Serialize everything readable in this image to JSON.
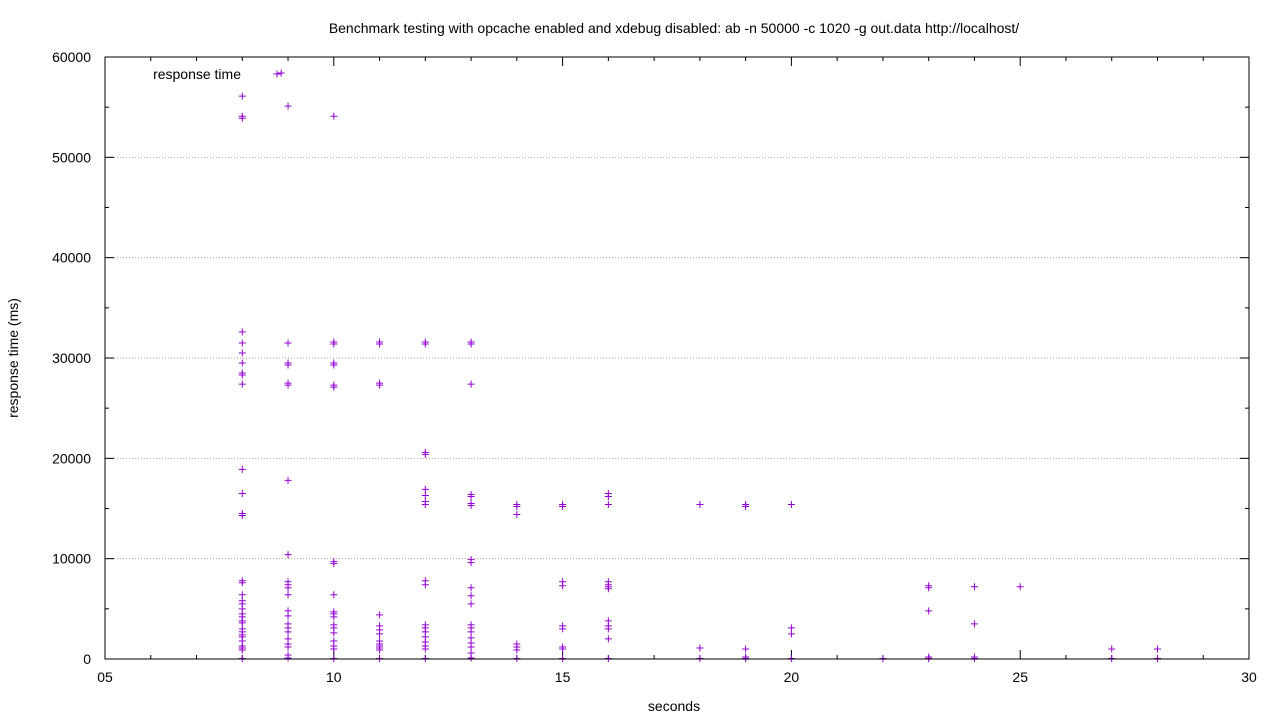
{
  "chart_data": {
    "type": "scatter",
    "title": "Benchmark testing with opcache enabled and xdebug disabled: ab -n 50000 -c 1020 -g out.data http://localhost/",
    "xlabel": "seconds",
    "ylabel": "response time (ms)",
    "xlim": [
      5,
      30
    ],
    "ylim": [
      0,
      60000
    ],
    "x_ticks": [
      5,
      10,
      15,
      20,
      25,
      30
    ],
    "x_tick_labels": [
      "05",
      "10",
      "15",
      "20",
      "25",
      "30"
    ],
    "y_ticks": [
      0,
      10000,
      20000,
      30000,
      40000,
      50000,
      60000
    ],
    "y_tick_labels": [
      "0",
      "10000",
      "20000",
      "30000",
      "40000",
      "50000",
      "60000"
    ],
    "grid": "horizontal dotted",
    "legend_position": "top-left",
    "series": [
      {
        "name": "response time",
        "color": "#9400d3",
        "marker": "plus",
        "points": [
          [
            8,
            56100
          ],
          [
            8,
            54100
          ],
          [
            8,
            53900
          ],
          [
            8,
            32600
          ],
          [
            8,
            31500
          ],
          [
            8,
            30500
          ],
          [
            8,
            29500
          ],
          [
            8,
            28500
          ],
          [
            8,
            28300
          ],
          [
            8,
            27400
          ],
          [
            8,
            18900
          ],
          [
            8,
            16500
          ],
          [
            8,
            14500
          ],
          [
            8,
            14300
          ],
          [
            8,
            7800
          ],
          [
            8,
            7600
          ],
          [
            8,
            6400
          ],
          [
            8,
            5800
          ],
          [
            8,
            5500
          ],
          [
            8,
            5000
          ],
          [
            8,
            4500
          ],
          [
            8,
            4200
          ],
          [
            8,
            3800
          ],
          [
            8,
            3600
          ],
          [
            8,
            3000
          ],
          [
            8,
            2700
          ],
          [
            8,
            2400
          ],
          [
            8,
            2200
          ],
          [
            8,
            1800
          ],
          [
            8,
            1300
          ],
          [
            8,
            1100
          ],
          [
            8,
            900
          ],
          [
            8,
            50
          ],
          [
            8.85,
            58400
          ],
          [
            9,
            55100
          ],
          [
            9,
            31500
          ],
          [
            9,
            29500
          ],
          [
            9,
            29300
          ],
          [
            9,
            27500
          ],
          [
            9,
            27300
          ],
          [
            9,
            17800
          ],
          [
            9,
            10400
          ],
          [
            9,
            7700
          ],
          [
            9,
            7400
          ],
          [
            9,
            7100
          ],
          [
            9,
            6400
          ],
          [
            9,
            4800
          ],
          [
            9,
            4300
          ],
          [
            9,
            3500
          ],
          [
            9,
            3100
          ],
          [
            9,
            2700
          ],
          [
            9,
            2000
          ],
          [
            9,
            1500
          ],
          [
            9,
            1200
          ],
          [
            9,
            400
          ],
          [
            9,
            100
          ],
          [
            10,
            54100
          ],
          [
            10,
            31600
          ],
          [
            10,
            31400
          ],
          [
            10,
            29500
          ],
          [
            10,
            29300
          ],
          [
            10,
            27300
          ],
          [
            10,
            27100
          ],
          [
            10,
            9700
          ],
          [
            10,
            9500
          ],
          [
            10,
            6400
          ],
          [
            10,
            4700
          ],
          [
            10,
            4500
          ],
          [
            10,
            4200
          ],
          [
            10,
            3400
          ],
          [
            10,
            3100
          ],
          [
            10,
            2600
          ],
          [
            10,
            1800
          ],
          [
            10,
            1300
          ],
          [
            10,
            1000
          ],
          [
            10,
            50
          ],
          [
            11,
            31600
          ],
          [
            11,
            31400
          ],
          [
            11,
            27500
          ],
          [
            11,
            27300
          ],
          [
            11,
            4400
          ],
          [
            11,
            3300
          ],
          [
            11,
            2900
          ],
          [
            11,
            2500
          ],
          [
            11,
            1800
          ],
          [
            11,
            1500
          ],
          [
            11,
            1300
          ],
          [
            11,
            1100
          ],
          [
            11,
            900
          ],
          [
            11,
            50
          ],
          [
            12,
            31600
          ],
          [
            12,
            31400
          ],
          [
            12,
            20600
          ],
          [
            12,
            20400
          ],
          [
            12,
            16900
          ],
          [
            12,
            16300
          ],
          [
            12,
            15700
          ],
          [
            12,
            15400
          ],
          [
            12,
            7800
          ],
          [
            12,
            7400
          ],
          [
            12,
            3400
          ],
          [
            12,
            3100
          ],
          [
            12,
            2700
          ],
          [
            12,
            2200
          ],
          [
            12,
            1700
          ],
          [
            12,
            1300
          ],
          [
            12,
            1000
          ],
          [
            12,
            50
          ],
          [
            13,
            31600
          ],
          [
            13,
            31400
          ],
          [
            13,
            27400
          ],
          [
            13,
            16400
          ],
          [
            13,
            16200
          ],
          [
            13,
            15500
          ],
          [
            13,
            15300
          ],
          [
            13,
            9900
          ],
          [
            13,
            9600
          ],
          [
            13,
            7100
          ],
          [
            13,
            6300
          ],
          [
            13,
            5500
          ],
          [
            13,
            3400
          ],
          [
            13,
            3100
          ],
          [
            13,
            2700
          ],
          [
            13,
            2100
          ],
          [
            13,
            1600
          ],
          [
            13,
            1200
          ],
          [
            13,
            600
          ],
          [
            13,
            100
          ],
          [
            14,
            15400
          ],
          [
            14,
            15200
          ],
          [
            14,
            14400
          ],
          [
            14,
            1500
          ],
          [
            14,
            1200
          ],
          [
            14,
            900
          ],
          [
            14,
            50
          ],
          [
            15,
            15400
          ],
          [
            15,
            15200
          ],
          [
            15,
            7700
          ],
          [
            15,
            7300
          ],
          [
            15,
            3300
          ],
          [
            15,
            3000
          ],
          [
            15,
            1200
          ],
          [
            15,
            1000
          ],
          [
            15,
            50
          ],
          [
            16,
            16500
          ],
          [
            16,
            16200
          ],
          [
            16,
            15400
          ],
          [
            16,
            7700
          ],
          [
            16,
            7400
          ],
          [
            16,
            7200
          ],
          [
            16,
            7000
          ],
          [
            16,
            3800
          ],
          [
            16,
            3300
          ],
          [
            16,
            3000
          ],
          [
            16,
            2000
          ],
          [
            16,
            50
          ],
          [
            18,
            15400
          ],
          [
            18,
            1100
          ],
          [
            18,
            50
          ],
          [
            19,
            15400
          ],
          [
            19,
            15200
          ],
          [
            19,
            1000
          ],
          [
            19,
            200
          ],
          [
            19,
            50
          ],
          [
            20,
            15400
          ],
          [
            20,
            3100
          ],
          [
            20,
            2500
          ],
          [
            20,
            50
          ],
          [
            22,
            50
          ],
          [
            23,
            7300
          ],
          [
            23,
            7100
          ],
          [
            23,
            4800
          ],
          [
            23,
            200
          ],
          [
            23,
            50
          ],
          [
            24,
            7200
          ],
          [
            24,
            3500
          ],
          [
            24,
            200
          ],
          [
            24,
            50
          ],
          [
            25,
            7200
          ],
          [
            27,
            1000
          ],
          [
            27,
            50
          ],
          [
            28,
            1000
          ],
          [
            28,
            50
          ]
        ]
      }
    ]
  }
}
